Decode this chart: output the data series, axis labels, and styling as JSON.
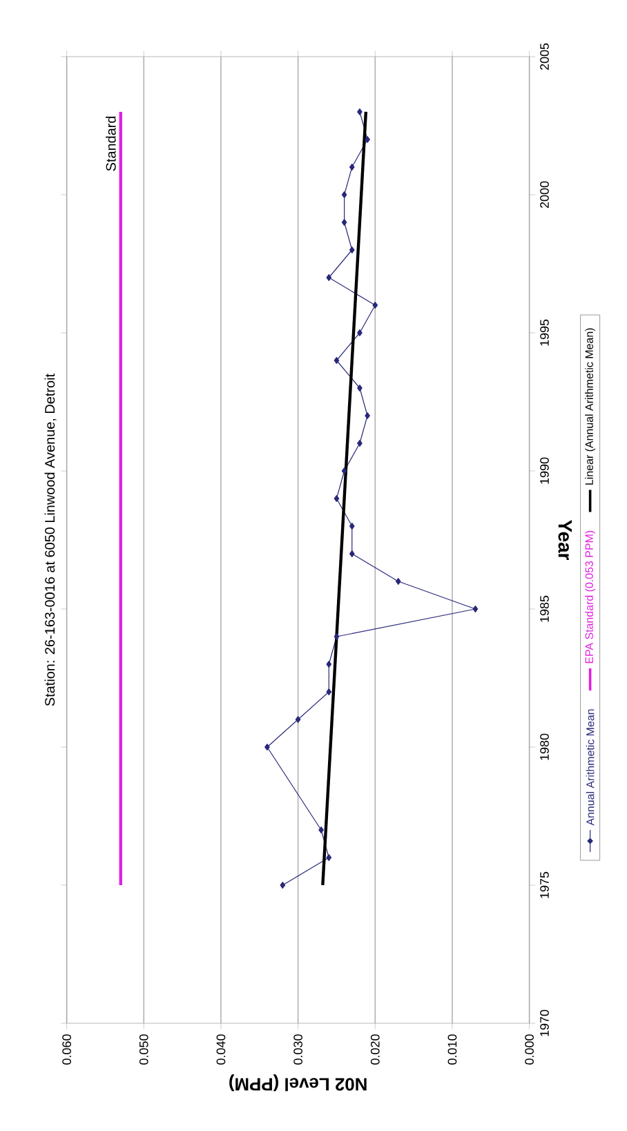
{
  "chart_data": {
    "type": "line",
    "title": "Station: 26-163-0016 at 6050 Linwood Avenue, Detroit",
    "xlabel": "N02 Level (PPM)",
    "ylabel": "Year",
    "xlim": [
      0.06,
      0
    ],
    "xticks": [
      {
        "value": 0.06,
        "label": "0.060"
      },
      {
        "value": 0.05,
        "label": "0.050"
      },
      {
        "value": 0.04,
        "label": "0.040"
      },
      {
        "value": 0.03,
        "label": "0.030"
      },
      {
        "value": 0.02,
        "label": "0.020"
      },
      {
        "value": 0.01,
        "label": "0.010"
      },
      {
        "value": 0,
        "label": "0.000"
      }
    ],
    "ylim": [
      1970,
      2005
    ],
    "yticks": [
      1970,
      1975,
      1980,
      1985,
      1990,
      1995,
      2000,
      2005
    ],
    "grid": "x",
    "legend": "right",
    "series": [
      {
        "name": "Annual Arithmetic Mean",
        "color": "#28287a",
        "marker": "diamond",
        "x": [
          0.032,
          0.026,
          0.027,
          0.034,
          0.03,
          0.026,
          0.026,
          0.025,
          0.007,
          0.017,
          0.023,
          0.023,
          0.025,
          0.024,
          0.022,
          0.021,
          0.022,
          0.025,
          0.022,
          0.02,
          0.026,
          0.023,
          0.024,
          0.024,
          0.023,
          0.021,
          0.022
        ],
        "values": [
          1975,
          1976,
          1977,
          1980,
          1981,
          1982,
          1983,
          1984,
          1985,
          1986,
          1987,
          1988,
          1989,
          1990,
          1991,
          1992,
          1993,
          1994,
          1995,
          1996,
          1997,
          1998,
          1999,
          2000,
          2001,
          2002,
          2003
        ]
      },
      {
        "name": "EPA Standard (0.053 PPM)",
        "color": "#e020e0",
        "marker": "none",
        "x": [
          0.053,
          0.053
        ],
        "values": [
          1975,
          2003
        ]
      },
      {
        "name": "Linear (Annual Arithmetic Mean)",
        "color": "#000000",
        "marker": "none",
        "x": [
          0.0268,
          0.0212
        ],
        "values": [
          1975,
          2003
        ]
      }
    ],
    "annotations": [
      {
        "text": "Standard",
        "x": 0.053,
        "y": 2002
      }
    ]
  }
}
